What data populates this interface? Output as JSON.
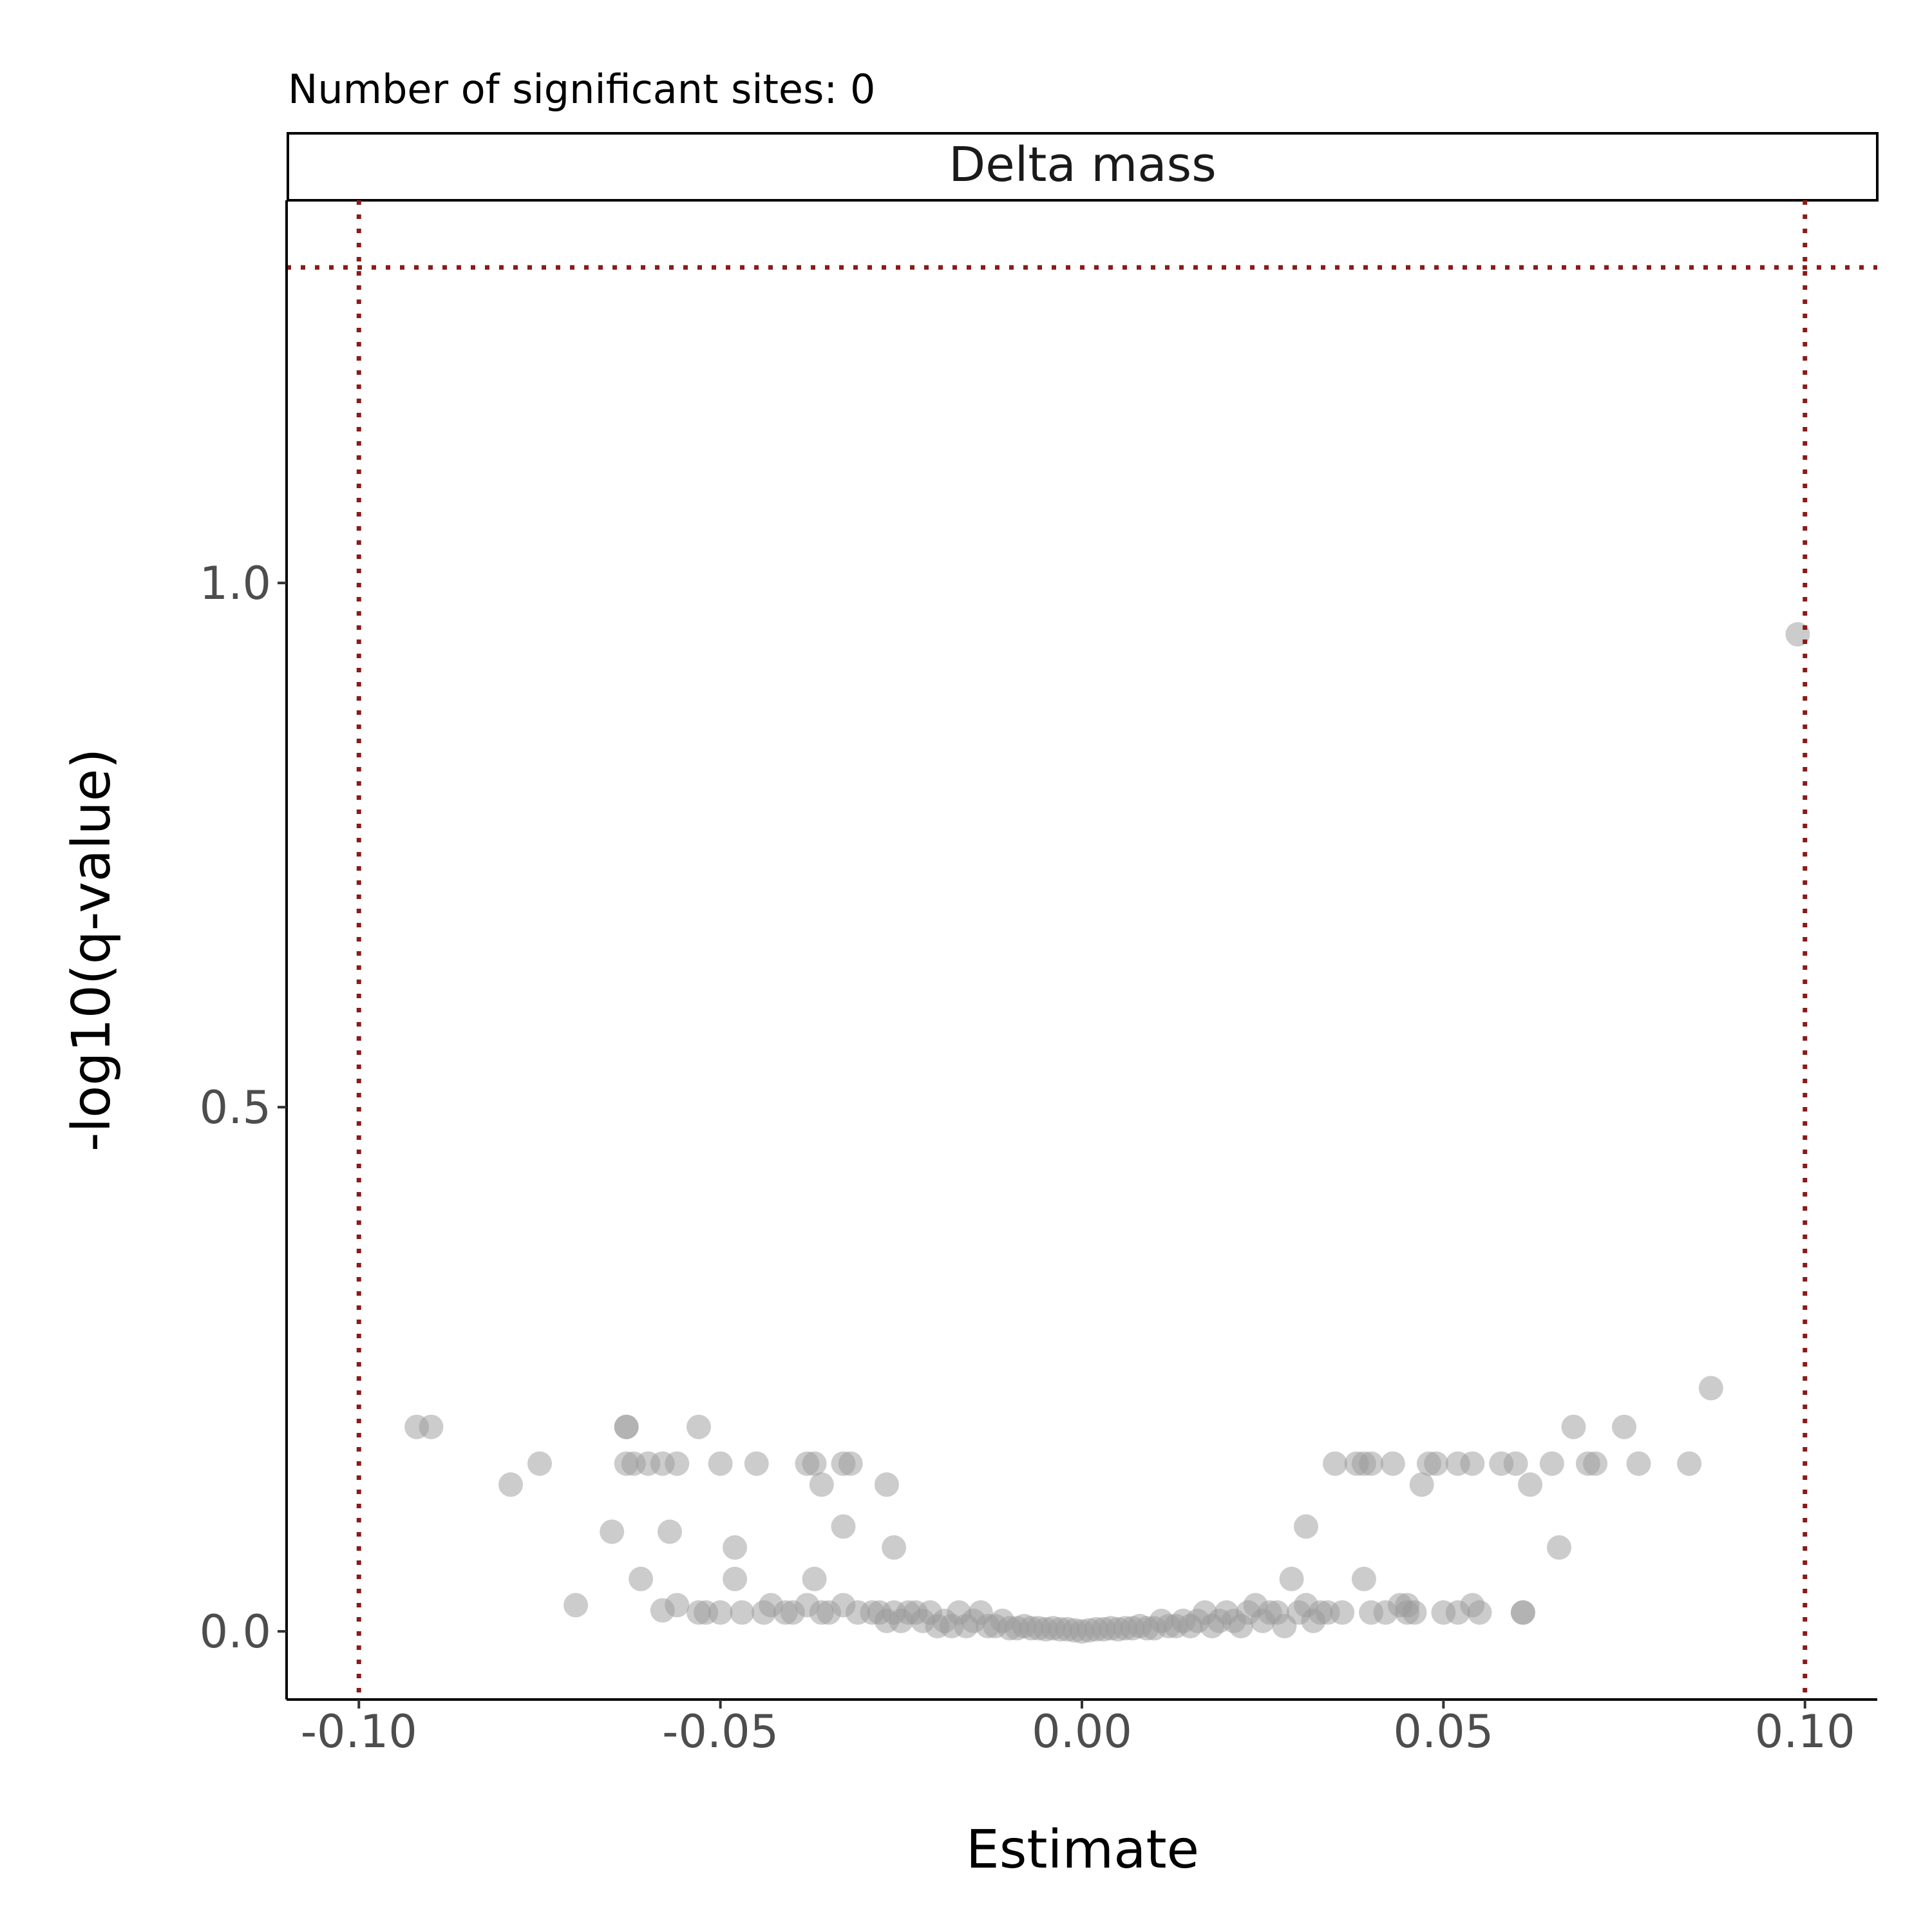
{
  "chart_data": {
    "type": "scatter",
    "subtitle": "Number of significant sites: 0",
    "facet_label": "Delta mass",
    "xlabel": "Estimate",
    "ylabel": "-log10(q-value)",
    "xlim": [
      -0.11,
      0.11
    ],
    "ylim": [
      -0.065,
      1.365
    ],
    "x_ticks": [
      {
        "value": -0.1,
        "label": "-0.10"
      },
      {
        "value": -0.05,
        "label": "-0.05"
      },
      {
        "value": 0.0,
        "label": "0.00"
      },
      {
        "value": 0.05,
        "label": "0.05"
      },
      {
        "value": 0.1,
        "label": "0.10"
      }
    ],
    "y_ticks": [
      {
        "value": 0.0,
        "label": "0.0"
      },
      {
        "value": 0.5,
        "label": "0.5"
      },
      {
        "value": 1.0,
        "label": "1.0"
      }
    ],
    "grid": false,
    "reference_lines": {
      "vertical": [
        -0.1,
        0.1
      ],
      "horizontal": [
        1.301
      ],
      "style": "dotted",
      "color": "#8B1A1A"
    },
    "point_color": "#999999",
    "series": [
      {
        "points": [
          [
            -0.092,
            0.195
          ],
          [
            -0.09,
            0.195
          ],
          [
            -0.079,
            0.14
          ],
          [
            -0.075,
            0.16
          ],
          [
            -0.07,
            0.025
          ],
          [
            -0.065,
            0.095
          ],
          [
            -0.063,
            0.195
          ],
          [
            -0.063,
            0.195
          ],
          [
            -0.063,
            0.16
          ],
          [
            -0.062,
            0.16
          ],
          [
            -0.061,
            0.05
          ],
          [
            -0.06,
            0.16
          ],
          [
            -0.058,
            0.16
          ],
          [
            -0.058,
            0.02
          ],
          [
            -0.057,
            0.095
          ],
          [
            -0.056,
            0.16
          ],
          [
            -0.056,
            0.025
          ],
          [
            -0.053,
            0.195
          ],
          [
            -0.053,
            0.018
          ],
          [
            -0.052,
            0.018
          ],
          [
            -0.05,
            0.16
          ],
          [
            -0.05,
            0.018
          ],
          [
            -0.048,
            0.08
          ],
          [
            -0.048,
            0.05
          ],
          [
            -0.047,
            0.018
          ],
          [
            -0.045,
            0.16
          ],
          [
            -0.044,
            0.018
          ],
          [
            -0.043,
            0.025
          ],
          [
            -0.041,
            0.018
          ],
          [
            -0.04,
            0.018
          ],
          [
            -0.038,
            0.16
          ],
          [
            -0.038,
            0.025
          ],
          [
            -0.037,
            0.16
          ],
          [
            -0.037,
            0.05
          ],
          [
            -0.036,
            0.14
          ],
          [
            -0.036,
            0.018
          ],
          [
            -0.035,
            0.018
          ],
          [
            -0.033,
            0.16
          ],
          [
            -0.033,
            0.1
          ],
          [
            -0.033,
            0.025
          ],
          [
            -0.032,
            0.16
          ],
          [
            -0.031,
            0.018
          ],
          [
            -0.029,
            0.018
          ],
          [
            -0.028,
            0.018
          ],
          [
            -0.027,
            0.14
          ],
          [
            -0.027,
            0.01
          ],
          [
            -0.026,
            0.08
          ],
          [
            -0.026,
            0.018
          ],
          [
            -0.025,
            0.01
          ],
          [
            -0.024,
            0.018
          ],
          [
            -0.023,
            0.018
          ],
          [
            -0.022,
            0.01
          ],
          [
            -0.021,
            0.018
          ],
          [
            -0.02,
            0.005
          ],
          [
            -0.019,
            0.01
          ],
          [
            -0.018,
            0.005
          ],
          [
            -0.017,
            0.018
          ],
          [
            -0.016,
            0.005
          ],
          [
            -0.015,
            0.01
          ],
          [
            -0.014,
            0.018
          ],
          [
            -0.013,
            0.005
          ],
          [
            -0.012,
            0.005
          ],
          [
            -0.011,
            0.01
          ],
          [
            -0.01,
            0.003
          ],
          [
            -0.009,
            0.003
          ],
          [
            -0.008,
            0.005
          ],
          [
            -0.007,
            0.003
          ],
          [
            -0.006,
            0.003
          ],
          [
            -0.005,
            0.002
          ],
          [
            -0.004,
            0.003
          ],
          [
            -0.003,
            0.002
          ],
          [
            -0.002,
            0.002
          ],
          [
            -0.001,
            0.001
          ],
          [
            0.0,
            0.0
          ],
          [
            0.001,
            0.001
          ],
          [
            0.002,
            0.002
          ],
          [
            0.003,
            0.002
          ],
          [
            0.004,
            0.003
          ],
          [
            0.005,
            0.002
          ],
          [
            0.006,
            0.003
          ],
          [
            0.007,
            0.003
          ],
          [
            0.008,
            0.005
          ],
          [
            0.009,
            0.003
          ],
          [
            0.01,
            0.003
          ],
          [
            0.011,
            0.01
          ],
          [
            0.012,
            0.005
          ],
          [
            0.013,
            0.005
          ],
          [
            0.014,
            0.01
          ],
          [
            0.015,
            0.005
          ],
          [
            0.016,
            0.01
          ],
          [
            0.017,
            0.018
          ],
          [
            0.018,
            0.005
          ],
          [
            0.019,
            0.01
          ],
          [
            0.02,
            0.018
          ],
          [
            0.021,
            0.01
          ],
          [
            0.022,
            0.005
          ],
          [
            0.023,
            0.018
          ],
          [
            0.024,
            0.025
          ],
          [
            0.025,
            0.01
          ],
          [
            0.026,
            0.018
          ],
          [
            0.027,
            0.018
          ],
          [
            0.028,
            0.005
          ],
          [
            0.029,
            0.05
          ],
          [
            0.03,
            0.018
          ],
          [
            0.031,
            0.1
          ],
          [
            0.031,
            0.025
          ],
          [
            0.032,
            0.01
          ],
          [
            0.033,
            0.018
          ],
          [
            0.034,
            0.018
          ],
          [
            0.035,
            0.16
          ],
          [
            0.036,
            0.018
          ],
          [
            0.038,
            0.16
          ],
          [
            0.039,
            0.16
          ],
          [
            0.039,
            0.05
          ],
          [
            0.04,
            0.16
          ],
          [
            0.04,
            0.018
          ],
          [
            0.042,
            0.018
          ],
          [
            0.043,
            0.16
          ],
          [
            0.044,
            0.025
          ],
          [
            0.045,
            0.025
          ],
          [
            0.045,
            0.018
          ],
          [
            0.046,
            0.018
          ],
          [
            0.047,
            0.14
          ],
          [
            0.048,
            0.16
          ],
          [
            0.049,
            0.16
          ],
          [
            0.05,
            0.018
          ],
          [
            0.052,
            0.16
          ],
          [
            0.052,
            0.018
          ],
          [
            0.054,
            0.16
          ],
          [
            0.054,
            0.025
          ],
          [
            0.055,
            0.018
          ],
          [
            0.058,
            0.16
          ],
          [
            0.06,
            0.16
          ],
          [
            0.061,
            0.018
          ],
          [
            0.061,
            0.018
          ],
          [
            0.062,
            0.14
          ],
          [
            0.065,
            0.16
          ],
          [
            0.066,
            0.08
          ],
          [
            0.068,
            0.195
          ],
          [
            0.07,
            0.16
          ],
          [
            0.071,
            0.16
          ],
          [
            0.075,
            0.195
          ],
          [
            0.077,
            0.16
          ],
          [
            0.084,
            0.16
          ],
          [
            0.087,
            0.232
          ],
          [
            0.099,
            0.951
          ]
        ]
      }
    ]
  }
}
